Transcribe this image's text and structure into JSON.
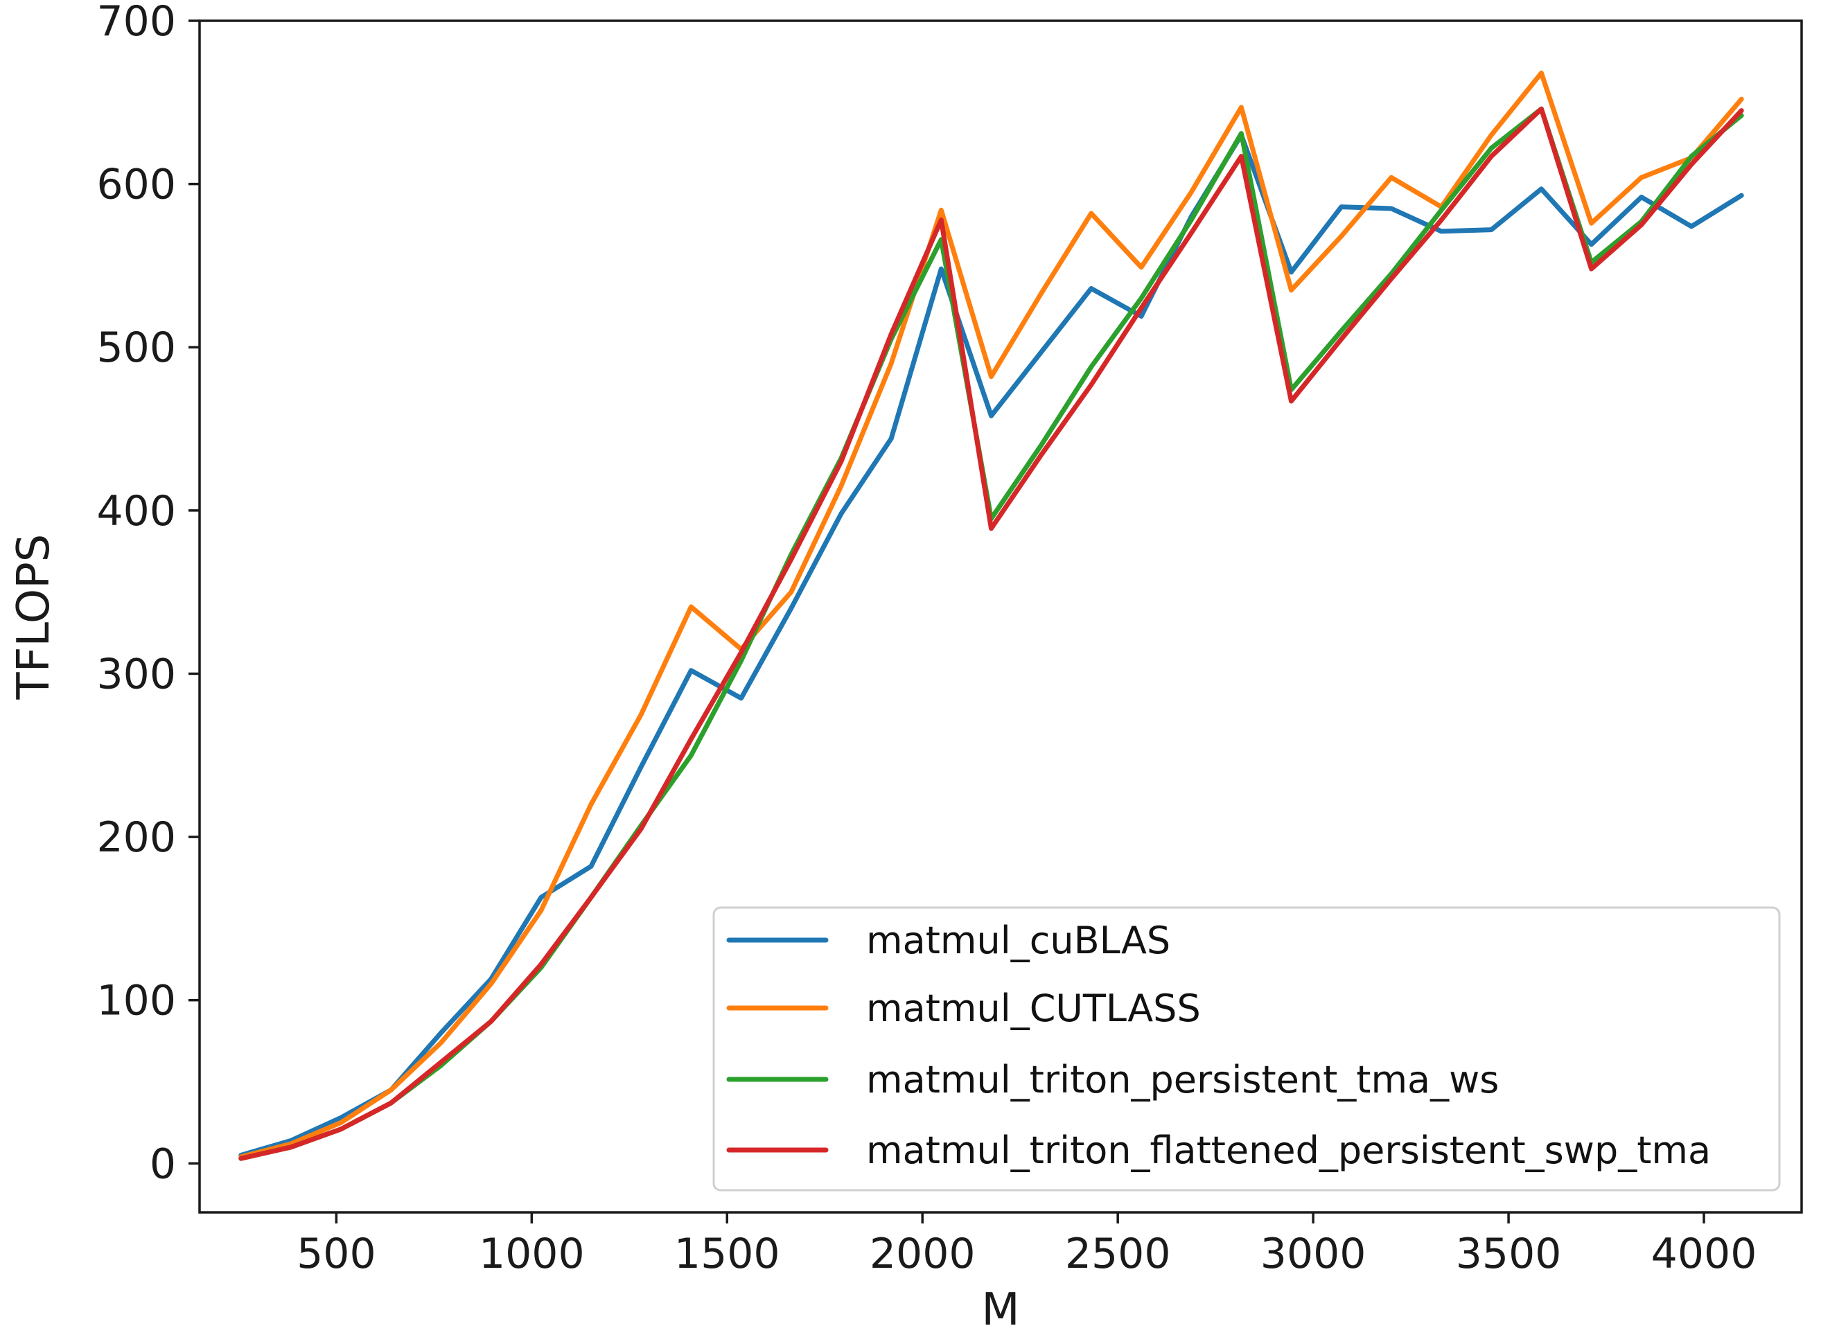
{
  "chart_data": {
    "type": "line",
    "title": "",
    "xlabel": "M",
    "ylabel": "TFLOPS",
    "xlim": [
      150,
      4250
    ],
    "ylim": [
      -30,
      700
    ],
    "xticks": [
      500,
      1000,
      1500,
      2000,
      2500,
      3000,
      3500,
      4000
    ],
    "yticks": [
      0,
      100,
      200,
      300,
      400,
      500,
      600,
      700
    ],
    "grid": false,
    "legend_position": "lower-right",
    "x": [
      256,
      384,
      512,
      640,
      768,
      896,
      1024,
      1152,
      1280,
      1408,
      1536,
      1664,
      1792,
      1920,
      2048,
      2176,
      2304,
      2432,
      2560,
      2688,
      2816,
      2944,
      3072,
      3200,
      3328,
      3456,
      3584,
      3712,
      3840,
      3968,
      4096
    ],
    "series": [
      {
        "name": "matmul_cuBLAS",
        "color": "#1f77b4",
        "values": [
          5,
          14,
          28,
          45,
          80,
          113,
          163,
          182,
          243,
          302,
          285,
          340,
          398,
          444,
          548,
          458,
          497,
          536,
          519,
          580,
          630,
          546,
          586,
          585,
          571,
          572,
          597,
          563,
          592,
          574,
          593
        ]
      },
      {
        "name": "matmul_CUTLASS",
        "color": "#ff7f0e",
        "values": [
          4,
          12,
          25,
          45,
          74,
          110,
          155,
          220,
          275,
          341,
          315,
          350,
          415,
          490,
          584,
          482,
          533,
          582,
          549,
          595,
          647,
          535,
          568,
          604,
          586,
          630,
          668,
          576,
          604,
          616,
          652
        ]
      },
      {
        "name": "matmul_triton_persistent_tma_ws",
        "color": "#2ca02c",
        "values": [
          3,
          10,
          21,
          37,
          60,
          87,
          120,
          163,
          207,
          250,
          308,
          373,
          432,
          505,
          566,
          395,
          440,
          488,
          530,
          578,
          631,
          474,
          510,
          545,
          584,
          622,
          646,
          552,
          577,
          617,
          642
        ]
      },
      {
        "name": "matmul_triton_flattened_persistent_swp_tma",
        "color": "#d62728",
        "values": [
          3,
          10,
          21,
          37,
          62,
          87,
          122,
          163,
          205,
          260,
          313,
          370,
          430,
          508,
          578,
          389,
          434,
          477,
          524,
          570,
          617,
          467,
          505,
          542,
          578,
          617,
          646,
          548,
          575,
          612,
          645
        ]
      }
    ]
  }
}
